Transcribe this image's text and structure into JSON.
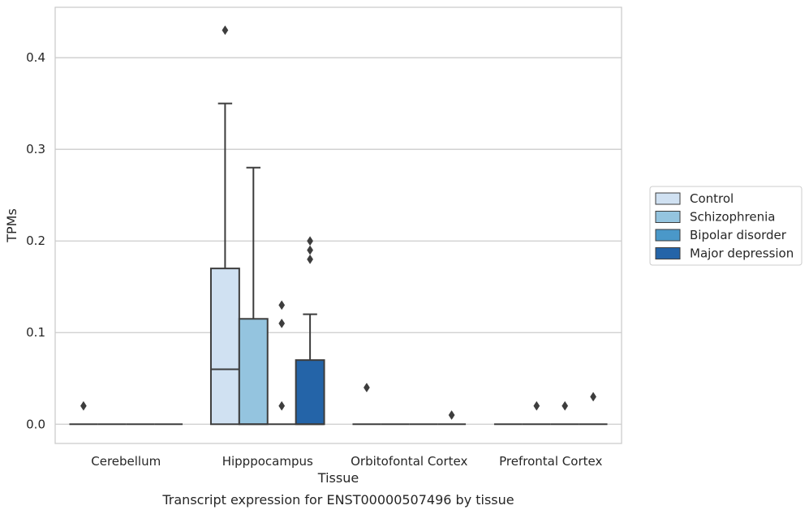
{
  "chart_data": {
    "type": "box",
    "xlabel": "Tissue",
    "ylabel": "TPMs",
    "caption": "Transcript expression for ENST00000507496 by tissue",
    "ylim": [
      -0.021,
      0.455
    ],
    "yticks": [
      "0.0",
      "0.1",
      "0.2",
      "0.3",
      "0.4"
    ],
    "grid": "horizontal",
    "legend_position": "right",
    "categories": [
      "Cerebellum",
      "Hipppocampus",
      "Orbitofontal Cortex",
      "Prefrontal Cortex"
    ],
    "series": [
      {
        "name": "Control",
        "color": "#d0e1f2",
        "boxes": [
          {
            "min": 0,
            "q1": 0,
            "median": 0,
            "q3": 0,
            "max": 0,
            "outliers": [
              0.02
            ]
          },
          {
            "min": 0,
            "q1": 0,
            "median": 0.06,
            "q3": 0.17,
            "max": 0.35,
            "outliers": [
              0.43
            ]
          },
          {
            "min": 0,
            "q1": 0,
            "median": 0,
            "q3": 0,
            "max": 0,
            "outliers": [
              0.04
            ]
          },
          {
            "min": 0,
            "q1": 0,
            "median": 0,
            "q3": 0,
            "max": 0,
            "outliers": []
          }
        ]
      },
      {
        "name": "Schizophrenia",
        "color": "#94c4df",
        "boxes": [
          {
            "min": 0,
            "q1": 0,
            "median": 0,
            "q3": 0,
            "max": 0,
            "outliers": []
          },
          {
            "min": 0,
            "q1": 0,
            "median": 0,
            "q3": 0.115,
            "max": 0.28,
            "outliers": []
          },
          {
            "min": 0,
            "q1": 0,
            "median": 0,
            "q3": 0,
            "max": 0,
            "outliers": []
          },
          {
            "min": 0,
            "q1": 0,
            "median": 0,
            "q3": 0,
            "max": 0,
            "outliers": [
              0.02
            ]
          }
        ]
      },
      {
        "name": "Bipolar disorder",
        "color": "#4a98c9",
        "boxes": [
          {
            "min": 0,
            "q1": 0,
            "median": 0,
            "q3": 0,
            "max": 0,
            "outliers": []
          },
          {
            "min": 0,
            "q1": 0,
            "median": 0,
            "q3": 0,
            "max": 0,
            "outliers": [
              0.02,
              0.11,
              0.13
            ]
          },
          {
            "min": 0,
            "q1": 0,
            "median": 0,
            "q3": 0,
            "max": 0,
            "outliers": []
          },
          {
            "min": 0,
            "q1": 0,
            "median": 0,
            "q3": 0,
            "max": 0,
            "outliers": [
              0.02
            ]
          }
        ]
      },
      {
        "name": "Major depression",
        "color": "#2464a8",
        "boxes": [
          {
            "min": 0,
            "q1": 0,
            "median": 0,
            "q3": 0,
            "max": 0,
            "outliers": []
          },
          {
            "min": 0,
            "q1": 0,
            "median": 0,
            "q3": 0.07,
            "max": 0.12,
            "outliers": [
              0.18,
              0.19,
              0.2
            ]
          },
          {
            "min": 0,
            "q1": 0,
            "median": 0,
            "q3": 0,
            "max": 0,
            "outliers": [
              0.01
            ]
          },
          {
            "min": 0,
            "q1": 0,
            "median": 0,
            "q3": 0,
            "max": 0,
            "outliers": [
              0.03
            ]
          }
        ]
      }
    ]
  }
}
